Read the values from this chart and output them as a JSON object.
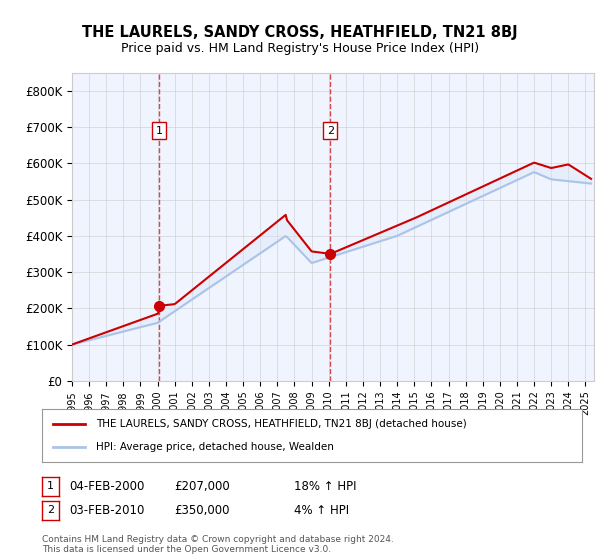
{
  "title": "THE LAURELS, SANDY CROSS, HEATHFIELD, TN21 8BJ",
  "subtitle": "Price paid vs. HM Land Registry's House Price Index (HPI)",
  "legend_line1": "THE LAURELS, SANDY CROSS, HEATHFIELD, TN21 8BJ (detached house)",
  "legend_line2": "HPI: Average price, detached house, Wealden",
  "sale1_label": "1",
  "sale1_date": "04-FEB-2000",
  "sale1_price": "£207,000",
  "sale1_hpi": "18% ↑ HPI",
  "sale1_year": 2000.09,
  "sale1_value": 207000,
  "sale2_label": "2",
  "sale2_date": "03-FEB-2010",
  "sale2_price": "£350,000",
  "sale2_hpi": "4% ↑ HPI",
  "sale2_year": 2010.09,
  "sale2_value": 350000,
  "footnote": "Contains HM Land Registry data © Crown copyright and database right 2024.\nThis data is licensed under the Open Government Licence v3.0.",
  "xmin": 1995.0,
  "xmax": 2025.5,
  "ymin": 0,
  "ymax": 850000,
  "yticks": [
    0,
    100000,
    200000,
    300000,
    400000,
    500000,
    600000,
    700000,
    800000
  ],
  "ytick_labels": [
    "£0",
    "£100K",
    "£200K",
    "£300K",
    "£400K",
    "£500K",
    "£600K",
    "£700K",
    "£800K"
  ],
  "background_color": "#f0f4ff",
  "plot_bg": "#f0f4ff",
  "grid_color": "#cccccc",
  "hpi_color": "#aac4e8",
  "price_color": "#cc0000",
  "marker_color": "#cc0000",
  "vline_color": "#cc0000",
  "shade_color": "#d6e4f7"
}
